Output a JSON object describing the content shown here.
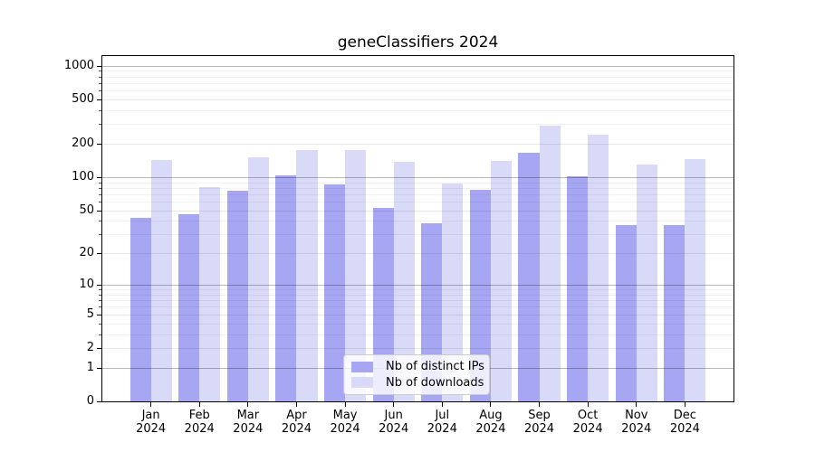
{
  "title": "geneClassifiers 2024",
  "chart_data": {
    "type": "bar",
    "title": "geneClassifiers 2024",
    "categories": [
      "Jan 2024",
      "Feb 2024",
      "Mar 2024",
      "Apr 2024",
      "May 2024",
      "Jun 2024",
      "Jul 2024",
      "Aug 2024",
      "Sep 2024",
      "Oct 2024",
      "Nov 2024",
      "Dec 2024"
    ],
    "series": [
      {
        "name": "Nb of distinct IPs",
        "color": "#a6a6f3",
        "values": [
          43,
          46,
          75,
          104,
          86,
          53,
          38,
          77,
          166,
          102,
          37,
          37
        ]
      },
      {
        "name": "Nb of downloads",
        "color": "#d9d9f8",
        "values": [
          142,
          81,
          151,
          176,
          176,
          138,
          88,
          141,
          290,
          240,
          130,
          145
        ]
      }
    ],
    "xlabel": "",
    "ylabel": "",
    "yscale": "log1p",
    "yticks": [
      0,
      1,
      2,
      5,
      10,
      20,
      50,
      100,
      200,
      500,
      1000
    ],
    "ylim": [
      0,
      1223
    ],
    "grid": true,
    "grid_above_bars": true,
    "legend_position": "lower center",
    "colors": {
      "spine": "#000000",
      "decade_grid": "#b8b8b8",
      "sub_grid": "#e8e8e8",
      "minor_grid": "#f2f2f2"
    }
  }
}
